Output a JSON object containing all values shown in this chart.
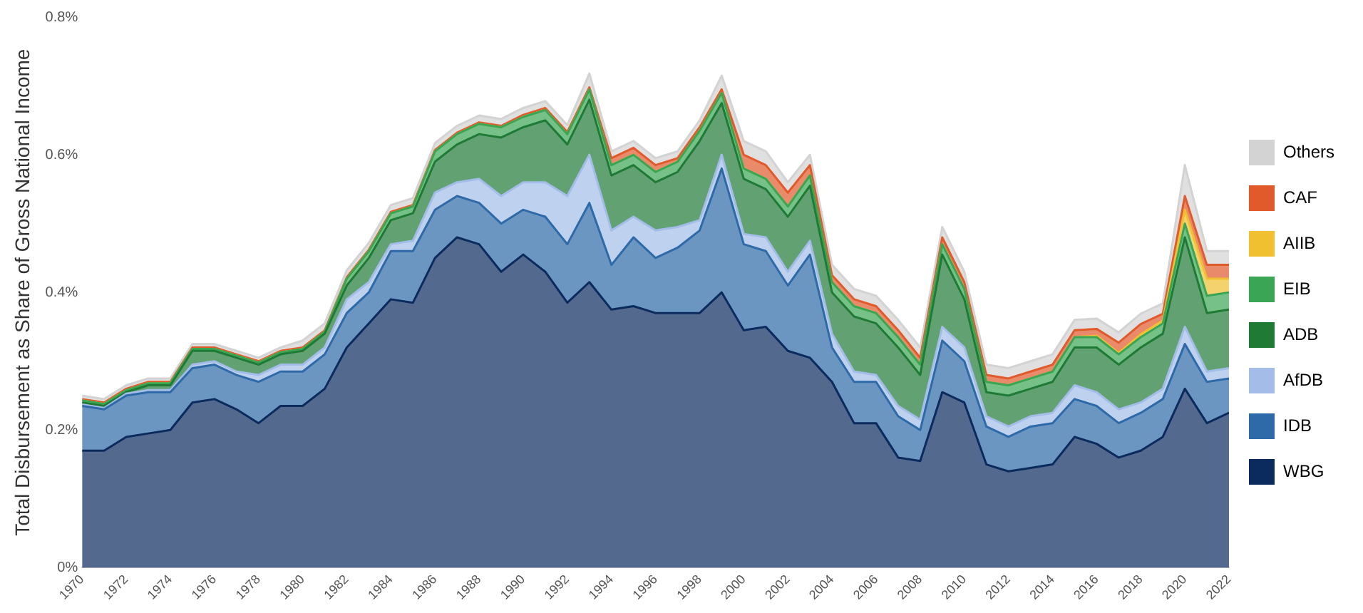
{
  "chart_data": {
    "type": "area",
    "stacked": true,
    "ylabel": "Total Disbursement as Share of Gross National Income",
    "x": [
      1970,
      1971,
      1972,
      1973,
      1974,
      1975,
      1976,
      1977,
      1978,
      1979,
      1980,
      1981,
      1982,
      1983,
      1984,
      1985,
      1986,
      1987,
      1988,
      1989,
      1990,
      1991,
      1992,
      1993,
      1994,
      1995,
      1996,
      1997,
      1998,
      1999,
      2000,
      2001,
      2002,
      2003,
      2004,
      2005,
      2006,
      2007,
      2008,
      2009,
      2010,
      2011,
      2012,
      2013,
      2014,
      2015,
      2016,
      2017,
      2018,
      2019,
      2020,
      2021,
      2022
    ],
    "xlim": [
      1970,
      2022
    ],
    "xticks": [
      1970,
      1972,
      1974,
      1976,
      1978,
      1980,
      1982,
      1984,
      1986,
      1988,
      1990,
      1992,
      1994,
      1996,
      1998,
      2000,
      2002,
      2004,
      2006,
      2008,
      2010,
      2012,
      2014,
      2016,
      2018,
      2020,
      2022
    ],
    "ylim": [
      0,
      0.8
    ],
    "yticks": [
      {
        "value": 0,
        "label": "0%"
      },
      {
        "value": 0.2,
        "label": "0.2%"
      },
      {
        "value": 0.4,
        "label": "0.4%"
      },
      {
        "value": 0.6,
        "label": "0.6%"
      },
      {
        "value": 0.8,
        "label": "0.8%"
      }
    ],
    "grid": false,
    "legend": "right",
    "series": [
      {
        "name": "WBG",
        "color": "#0b2a5e",
        "values": [
          0.17,
          0.17,
          0.19,
          0.195,
          0.2,
          0.24,
          0.245,
          0.23,
          0.21,
          0.235,
          0.235,
          0.26,
          0.32,
          0.355,
          0.39,
          0.385,
          0.45,
          0.48,
          0.47,
          0.43,
          0.455,
          0.43,
          0.385,
          0.415,
          0.375,
          0.38,
          0.37,
          0.37,
          0.37,
          0.4,
          0.345,
          0.35,
          0.315,
          0.305,
          0.27,
          0.21,
          0.21,
          0.16,
          0.155,
          0.255,
          0.24,
          0.15,
          0.14,
          0.145,
          0.15,
          0.19,
          0.18,
          0.16,
          0.17,
          0.19,
          0.26,
          0.21,
          0.225
        ]
      },
      {
        "name": "IDB",
        "color": "#2e6aa8",
        "values": [
          0.065,
          0.06,
          0.06,
          0.06,
          0.055,
          0.05,
          0.05,
          0.05,
          0.06,
          0.05,
          0.05,
          0.05,
          0.05,
          0.045,
          0.07,
          0.075,
          0.07,
          0.06,
          0.06,
          0.07,
          0.065,
          0.08,
          0.085,
          0.115,
          0.065,
          0.1,
          0.08,
          0.095,
          0.12,
          0.18,
          0.125,
          0.11,
          0.095,
          0.15,
          0.05,
          0.06,
          0.06,
          0.06,
          0.045,
          0.075,
          0.06,
          0.055,
          0.05,
          0.06,
          0.06,
          0.055,
          0.055,
          0.05,
          0.055,
          0.055,
          0.065,
          0.06,
          0.05
        ]
      },
      {
        "name": "AfDB",
        "color": "#a3bde8",
        "values": [
          0.002,
          0.002,
          0.003,
          0.003,
          0.003,
          0.005,
          0.005,
          0.005,
          0.01,
          0.01,
          0.01,
          0.01,
          0.02,
          0.015,
          0.01,
          0.015,
          0.025,
          0.02,
          0.035,
          0.04,
          0.04,
          0.05,
          0.07,
          0.07,
          0.05,
          0.03,
          0.04,
          0.03,
          0.015,
          0.02,
          0.015,
          0.02,
          0.02,
          0.02,
          0.02,
          0.015,
          0.01,
          0.015,
          0.015,
          0.02,
          0.02,
          0.015,
          0.015,
          0.015,
          0.015,
          0.02,
          0.02,
          0.02,
          0.015,
          0.015,
          0.025,
          0.015,
          0.015
        ]
      },
      {
        "name": "ADB",
        "color": "#1f7a36",
        "values": [
          0.003,
          0.003,
          0.002,
          0.007,
          0.007,
          0.02,
          0.015,
          0.02,
          0.015,
          0.015,
          0.02,
          0.02,
          0.02,
          0.035,
          0.035,
          0.04,
          0.045,
          0.055,
          0.065,
          0.085,
          0.08,
          0.09,
          0.075,
          0.08,
          0.08,
          0.075,
          0.07,
          0.08,
          0.115,
          0.075,
          0.08,
          0.07,
          0.08,
          0.08,
          0.06,
          0.08,
          0.075,
          0.085,
          0.065,
          0.105,
          0.07,
          0.035,
          0.045,
          0.04,
          0.045,
          0.055,
          0.065,
          0.065,
          0.08,
          0.08,
          0.13,
          0.085,
          0.085
        ]
      },
      {
        "name": "EIB",
        "color": "#3aa655",
        "values": [
          0.003,
          0.003,
          0.003,
          0.003,
          0.003,
          0.003,
          0.003,
          0.003,
          0.003,
          0.003,
          0.003,
          0.003,
          0.01,
          0.01,
          0.01,
          0.01,
          0.015,
          0.015,
          0.015,
          0.015,
          0.015,
          0.015,
          0.015,
          0.015,
          0.015,
          0.015,
          0.015,
          0.015,
          0.015,
          0.015,
          0.015,
          0.015,
          0.015,
          0.015,
          0.015,
          0.015,
          0.015,
          0.015,
          0.015,
          0.015,
          0.015,
          0.015,
          0.015,
          0.015,
          0.015,
          0.015,
          0.015,
          0.015,
          0.015,
          0.015,
          0.02,
          0.025,
          0.025
        ]
      },
      {
        "name": "AIIB",
        "color": "#f0c030",
        "values": [
          0,
          0,
          0,
          0,
          0,
          0,
          0,
          0,
          0,
          0,
          0,
          0,
          0,
          0,
          0,
          0,
          0,
          0,
          0,
          0,
          0,
          0,
          0,
          0,
          0,
          0,
          0,
          0,
          0,
          0,
          0,
          0,
          0,
          0,
          0,
          0,
          0,
          0,
          0,
          0,
          0,
          0,
          0,
          0,
          0,
          0,
          0.002,
          0.002,
          0.004,
          0.004,
          0.02,
          0.025,
          0.02
        ]
      },
      {
        "name": "CAF",
        "color": "#e05a2b",
        "values": [
          0.002,
          0.002,
          0.002,
          0.002,
          0.002,
          0.002,
          0.002,
          0.002,
          0.002,
          0.002,
          0.002,
          0.002,
          0.002,
          0.002,
          0.002,
          0.002,
          0.002,
          0.002,
          0.002,
          0.002,
          0.003,
          0.003,
          0.003,
          0.003,
          0.01,
          0.01,
          0.01,
          0.005,
          0.005,
          0.005,
          0.02,
          0.02,
          0.02,
          0.015,
          0.01,
          0.01,
          0.01,
          0.01,
          0.01,
          0.01,
          0.01,
          0.01,
          0.01,
          0.01,
          0.01,
          0.01,
          0.01,
          0.015,
          0.015,
          0.01,
          0.02,
          0.02,
          0.02
        ]
      },
      {
        "name": "Others",
        "color": "#d3d3d3",
        "values": [
          0.005,
          0.005,
          0.005,
          0.005,
          0.005,
          0.005,
          0.005,
          0.005,
          0.005,
          0.005,
          0.01,
          0.01,
          0.01,
          0.01,
          0.01,
          0.01,
          0.01,
          0.01,
          0.01,
          0.01,
          0.01,
          0.01,
          0.01,
          0.02,
          0.01,
          0.01,
          0.01,
          0.01,
          0.01,
          0.02,
          0.02,
          0.02,
          0.015,
          0.015,
          0.015,
          0.015,
          0.015,
          0.015,
          0.015,
          0.015,
          0.015,
          0.015,
          0.015,
          0.015,
          0.015,
          0.015,
          0.015,
          0.015,
          0.015,
          0.015,
          0.045,
          0.02,
          0.02
        ]
      }
    ]
  }
}
